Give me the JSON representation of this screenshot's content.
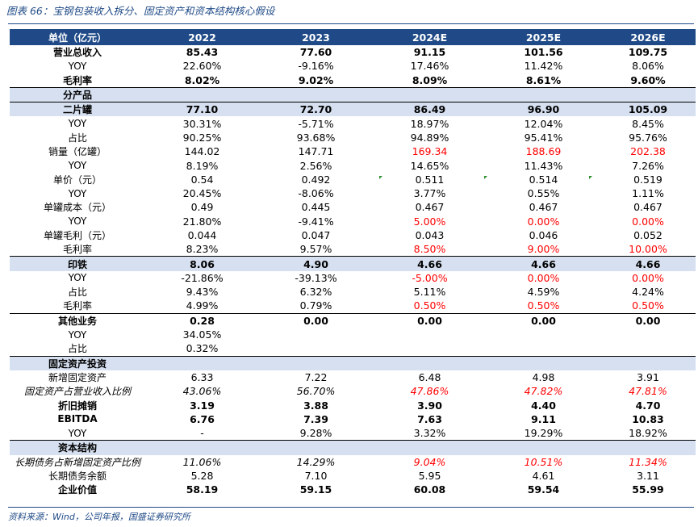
{
  "caption": "图表 66：宝钢包装收入拆分、固定资产和资本结构核心假设",
  "source": "资料来源：Wind，公司年报，国盛证券研究所",
  "header": {
    "label": "单位（亿元）",
    "years": [
      "2022",
      "2023",
      "2024E",
      "2025E",
      "2026E"
    ]
  },
  "rows": [
    {
      "label": "营业总收入",
      "values": [
        "85.43",
        "77.60",
        "91.15",
        "101.56",
        "109.75"
      ],
      "style": "bold"
    },
    {
      "label": "YOY",
      "values": [
        "22.60%",
        "-9.16%",
        "17.46%",
        "11.42%",
        "8.06%"
      ]
    },
    {
      "label": "毛利率",
      "values": [
        "8.02%",
        "9.02%",
        "8.09%",
        "8.61%",
        "9.60%"
      ],
      "style": "bold"
    },
    {
      "label": "分产品",
      "values": [
        "",
        "",
        "",
        "",
        ""
      ],
      "style": "sec"
    },
    {
      "label": "二片罐",
      "values": [
        "77.10",
        "72.70",
        "86.49",
        "96.90",
        "105.09"
      ],
      "style": "sec"
    },
    {
      "label": "YOY",
      "values": [
        "30.31%",
        "-5.71%",
        "18.97%",
        "12.04%",
        "8.45%"
      ]
    },
    {
      "label": "占比",
      "values": [
        "90.25%",
        "93.68%",
        "94.89%",
        "95.41%",
        "95.76%"
      ]
    },
    {
      "label": "销量（亿罐）",
      "values": [
        "144.02",
        "147.71",
        "169.34",
        "188.69",
        "202.38"
      ],
      "red": [
        2,
        3,
        4
      ]
    },
    {
      "label": "YOY",
      "values": [
        "8.19%",
        "2.56%",
        "14.65%",
        "11.43%",
        "7.26%"
      ]
    },
    {
      "label": "单价（元）",
      "values": [
        "0.54",
        "0.492",
        "0.511",
        "0.514",
        "0.519"
      ]
    },
    {
      "label": "YOY",
      "values": [
        "20.45%",
        "-8.06%",
        "3.77%",
        "0.55%",
        "1.11%"
      ]
    },
    {
      "label": "单罐成本（元）",
      "values": [
        "0.49",
        "0.445",
        "0.467",
        "0.467",
        "0.467"
      ]
    },
    {
      "label": "YOY",
      "values": [
        "21.80%",
        "-9.41%",
        "5.00%",
        "0.00%",
        "0.00%"
      ],
      "red": [
        2,
        3,
        4
      ]
    },
    {
      "label": "单罐毛利（元）",
      "values": [
        "0.044",
        "0.047",
        "0.043",
        "0.046",
        "0.052"
      ]
    },
    {
      "label": "毛利率",
      "values": [
        "8.23%",
        "9.57%",
        "8.50%",
        "9.00%",
        "10.00%"
      ],
      "red": [
        2,
        3,
        4
      ]
    },
    {
      "label": "印铁",
      "values": [
        "8.06",
        "4.90",
        "4.66",
        "4.66",
        "4.66"
      ],
      "style": "sec"
    },
    {
      "label": "YOY",
      "values": [
        "-21.86%",
        "-39.13%",
        "-5.00%",
        "0.00%",
        "0.00%"
      ],
      "red": [
        2,
        3,
        4
      ]
    },
    {
      "label": "占比",
      "values": [
        "9.43%",
        "6.32%",
        "5.11%",
        "4.59%",
        "4.24%"
      ]
    },
    {
      "label": "毛利率",
      "values": [
        "4.99%",
        "0.79%",
        "0.50%",
        "0.50%",
        "0.50%"
      ],
      "red": [
        2,
        3,
        4
      ]
    },
    {
      "label": "其他业务",
      "values": [
        "0.28",
        "0.00",
        "0.00",
        "0.00",
        "0.00"
      ],
      "style": "boldline"
    },
    {
      "label": "YOY",
      "values": [
        "34.05%",
        "",
        "",
        "",
        ""
      ]
    },
    {
      "label": "占比",
      "values": [
        "0.32%",
        "",
        "",
        "",
        ""
      ]
    },
    {
      "label": "固定资产投资",
      "values": [
        "",
        "",
        "",
        "",
        ""
      ],
      "style": "sec"
    },
    {
      "label": "新增固定资产",
      "values": [
        "6.33",
        "7.22",
        "6.48",
        "4.98",
        "3.91"
      ]
    },
    {
      "label": "固定资产占营业收入比例",
      "values": [
        "43.06%",
        "56.70%",
        "47.86%",
        "47.82%",
        "47.81%"
      ],
      "style": "italic",
      "red": [
        2,
        3,
        4
      ]
    },
    {
      "label": "折旧摊销",
      "values": [
        "3.19",
        "3.88",
        "3.90",
        "4.40",
        "4.70"
      ],
      "style": "bold"
    },
    {
      "label": "EBITDA",
      "values": [
        "6.76",
        "7.39",
        "7.63",
        "9.11",
        "10.83"
      ],
      "style": "bold"
    },
    {
      "label": "YOY",
      "values": [
        "-",
        "9.28%",
        "3.32%",
        "19.29%",
        "18.92%"
      ]
    },
    {
      "label": "资本结构",
      "values": [
        "",
        "",
        "",
        "",
        ""
      ],
      "style": "sec"
    },
    {
      "label": "长期债务占新增固定资产比例",
      "values": [
        "11.06%",
        "14.29%",
        "9.04%",
        "10.51%",
        "11.34%"
      ],
      "style": "italic",
      "red": [
        2,
        3,
        4
      ]
    },
    {
      "label": "长期债务余额",
      "values": [
        "5.28",
        "7.10",
        "5.95",
        "4.61",
        "3.11"
      ]
    },
    {
      "label": "企业价值",
      "values": [
        "58.19",
        "59.15",
        "60.08",
        "59.54",
        "55.99"
      ],
      "style": "bold"
    }
  ]
}
